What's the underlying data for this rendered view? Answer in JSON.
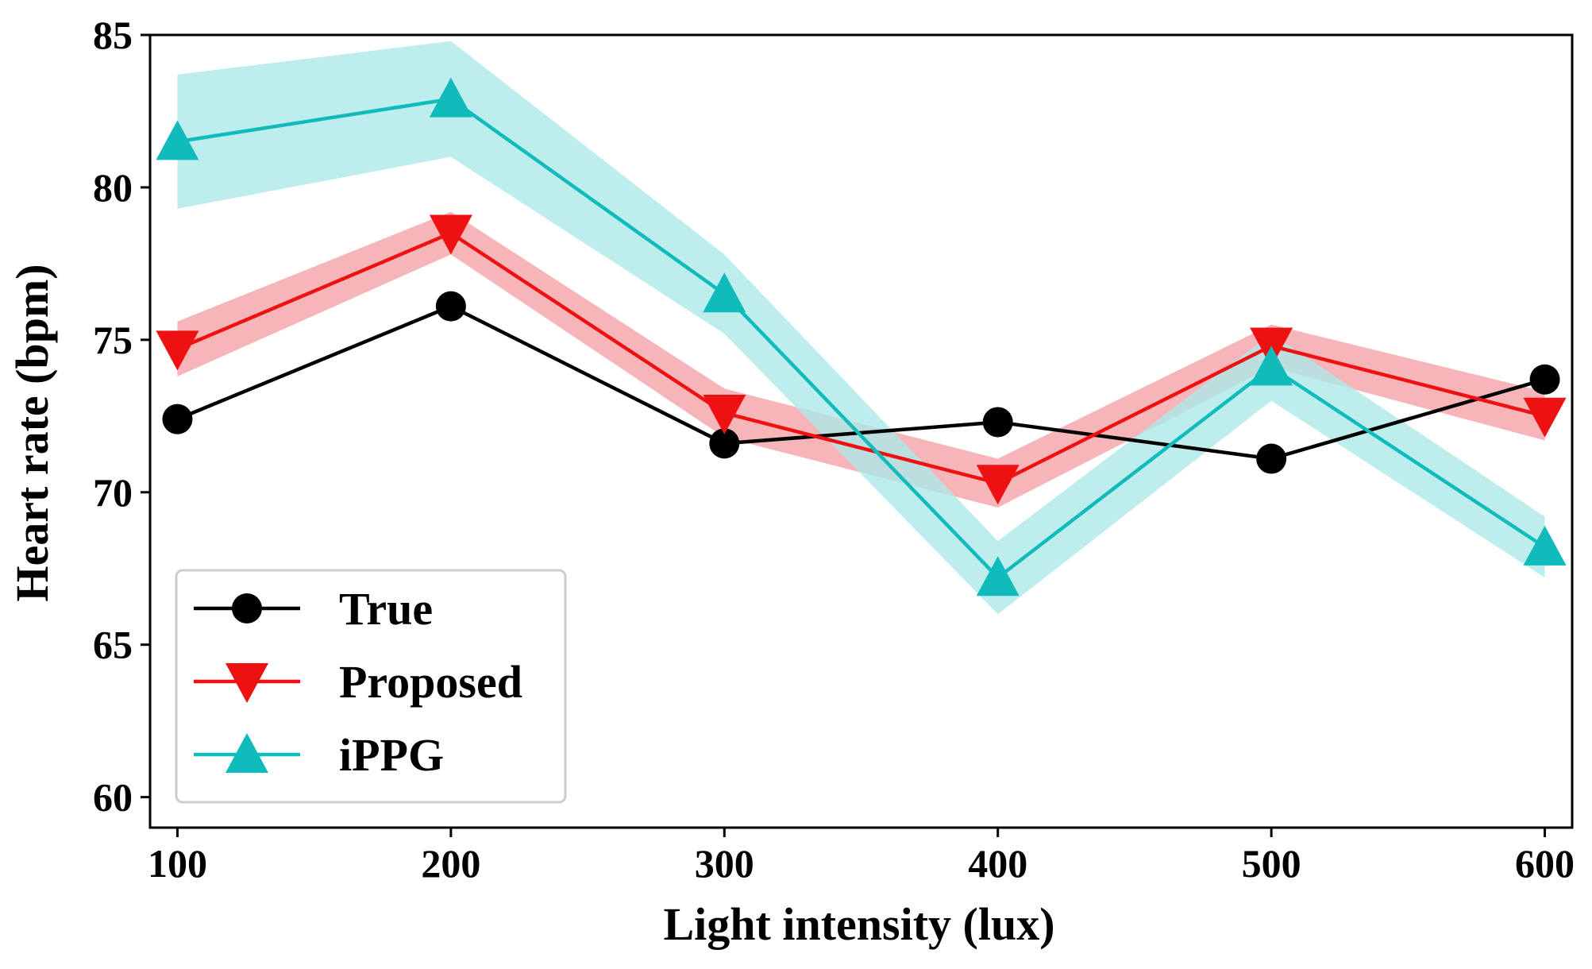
{
  "chart_data": {
    "type": "line",
    "title": "",
    "xlabel": "Light intensity (lux)",
    "ylabel": "Heart rate (bpm)",
    "x": [
      100,
      200,
      300,
      400,
      500,
      600
    ],
    "xlim": [
      90,
      610
    ],
    "ylim": [
      59,
      85
    ],
    "xticks": [
      "100",
      "200",
      "300",
      "400",
      "500",
      "600"
    ],
    "yticks": [
      "60",
      "65",
      "70",
      "75",
      "80",
      "85"
    ],
    "legend_position": "lower-left",
    "series": [
      {
        "name": "True",
        "marker": "circle",
        "color": "#000000",
        "values": [
          72.4,
          76.1,
          71.6,
          72.3,
          71.1,
          73.7
        ]
      },
      {
        "name": "Proposed",
        "marker": "triangle-down",
        "color": "#ee1111",
        "band_color": "#f4a3a6",
        "values": [
          74.7,
          78.5,
          72.6,
          70.3,
          74.8,
          72.5
        ],
        "band_lower": [
          73.8,
          77.8,
          71.8,
          69.5,
          74.1,
          71.7
        ],
        "band_upper": [
          75.6,
          79.2,
          73.4,
          71.1,
          75.5,
          73.3
        ]
      },
      {
        "name": "iPPG",
        "marker": "triangle-up",
        "color": "#11bbbb",
        "band_color": "#aee8e8",
        "values": [
          81.5,
          82.9,
          76.5,
          67.2,
          74.1,
          68.2
        ],
        "band_lower": [
          79.3,
          81.0,
          75.2,
          66.0,
          73.0,
          67.2
        ],
        "band_upper": [
          83.7,
          84.8,
          77.8,
          68.4,
          75.2,
          69.2
        ]
      }
    ]
  }
}
